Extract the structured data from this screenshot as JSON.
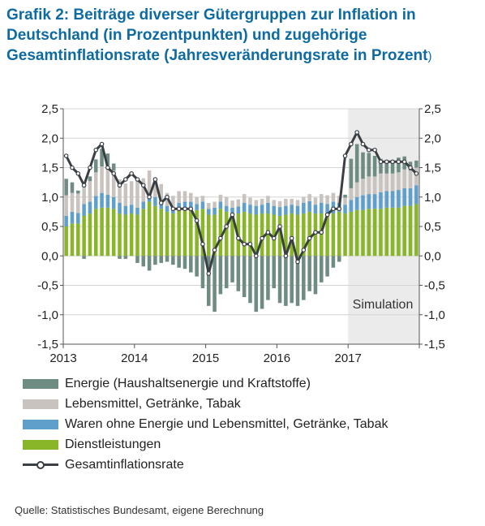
{
  "title_main": "Grafik 2: Beiträge diverser Gütergruppen zur Inflation in Deutschland (in Prozentpunkten) und zugehörige Gesamtinflationsrate (Jahresveränderungsrate in Prozent",
  "title_paren": ")",
  "source": "Quelle: Statistisches Bundesamt, eigene Berechnung",
  "colors": {
    "energie": "#6e8c82",
    "lebensmittel": "#c8c3be",
    "waren": "#5e9fcb",
    "dienst": "#88b628",
    "gesamt": "#3a3f44",
    "simulation_bg": "#ebebeb",
    "grid": "#d4d4d4"
  },
  "chart_data": {
    "type": "bar",
    "stacked": true,
    "title": "",
    "xlabel": "",
    "ylabel": "",
    "ylim": [
      -1.5,
      2.5
    ],
    "yticks": [
      -1.5,
      -1.0,
      -0.5,
      0.0,
      0.5,
      1.0,
      1.5,
      2.0,
      2.5
    ],
    "ytick_labels": [
      "-1,5",
      "-1,0",
      "-0,5",
      "0,0",
      "0,5",
      "1,0",
      "1,5",
      "2,0",
      "2,5"
    ],
    "x_tick_labels": [
      "2013",
      "2014",
      "2015",
      "2016",
      "2017"
    ],
    "grid": "horizontal",
    "secondary_y_axis": true,
    "annotation": "Simulation",
    "simulation_start": "2017-01",
    "categories": [
      "2013-01",
      "2013-02",
      "2013-03",
      "2013-04",
      "2013-05",
      "2013-06",
      "2013-07",
      "2013-08",
      "2013-09",
      "2013-10",
      "2013-11",
      "2013-12",
      "2014-01",
      "2014-02",
      "2014-03",
      "2014-04",
      "2014-05",
      "2014-06",
      "2014-07",
      "2014-08",
      "2014-09",
      "2014-10",
      "2014-11",
      "2014-12",
      "2015-01",
      "2015-02",
      "2015-03",
      "2015-04",
      "2015-05",
      "2015-06",
      "2015-07",
      "2015-08",
      "2015-09",
      "2015-10",
      "2015-11",
      "2015-12",
      "2016-01",
      "2016-02",
      "2016-03",
      "2016-04",
      "2016-05",
      "2016-06",
      "2016-07",
      "2016-08",
      "2016-09",
      "2016-10",
      "2016-11",
      "2016-12",
      "2017-01",
      "2017-02",
      "2017-03",
      "2017-04",
      "2017-05",
      "2017-06",
      "2017-07",
      "2017-08",
      "2017-09",
      "2017-10",
      "2017-11",
      "2017-12"
    ],
    "series": [
      {
        "name": "Energie (Haushaltsenergie und Kraftstoffe)",
        "key": "energie",
        "values": [
          0.28,
          0.18,
          0.05,
          -0.05,
          0.08,
          0.22,
          0.3,
          0.2,
          0.12,
          -0.05,
          -0.05,
          0.0,
          -0.12,
          -0.18,
          -0.25,
          -0.15,
          -0.12,
          -0.1,
          -0.15,
          -0.2,
          -0.22,
          -0.28,
          -0.35,
          -0.55,
          -0.85,
          -0.95,
          -0.65,
          -0.55,
          -0.45,
          -0.6,
          -0.7,
          -0.8,
          -0.95,
          -0.9,
          -0.75,
          -0.55,
          -0.8,
          -0.85,
          -0.8,
          -0.85,
          -0.75,
          -0.6,
          -0.65,
          -0.45,
          -0.35,
          -0.2,
          -0.1,
          0.05,
          0.5,
          0.65,
          0.45,
          0.4,
          0.35,
          0.25,
          0.2,
          0.22,
          0.25,
          0.22,
          0.15,
          0.12
        ]
      },
      {
        "name": "Lebensmittel, Getränke, Tabak",
        "key": "lebensmittel",
        "values": [
          0.35,
          0.32,
          0.33,
          0.35,
          0.35,
          0.4,
          0.45,
          0.5,
          0.45,
          0.4,
          0.38,
          0.4,
          0.45,
          0.4,
          0.38,
          0.3,
          0.3,
          0.22,
          0.2,
          0.2,
          0.18,
          0.15,
          0.12,
          0.1,
          0.1,
          0.1,
          0.12,
          0.15,
          0.12,
          0.12,
          0.15,
          0.12,
          0.1,
          0.1,
          0.12,
          0.1,
          0.1,
          0.12,
          0.1,
          0.1,
          0.1,
          0.12,
          0.12,
          0.15,
          0.15,
          0.15,
          0.12,
          0.12,
          0.2,
          0.25,
          0.28,
          0.3,
          0.3,
          0.32,
          0.3,
          0.3,
          0.3,
          0.32,
          0.3,
          0.3
        ]
      },
      {
        "name": "Waren ohne Energie und Lebensmittel, Getränke, Tabak",
        "key": "waren",
        "values": [
          0.18,
          0.2,
          0.18,
          0.2,
          0.2,
          0.22,
          0.25,
          0.22,
          0.2,
          0.18,
          0.15,
          0.15,
          0.12,
          0.12,
          0.15,
          0.15,
          0.12,
          0.1,
          0.1,
          0.12,
          0.12,
          0.1,
          0.1,
          0.12,
          0.1,
          0.12,
          0.12,
          0.1,
          0.12,
          0.12,
          0.15,
          0.15,
          0.15,
          0.15,
          0.18,
          0.15,
          0.15,
          0.15,
          0.15,
          0.15,
          0.18,
          0.18,
          0.15,
          0.18,
          0.18,
          0.2,
          0.15,
          0.15,
          0.2,
          0.22,
          0.25,
          0.25,
          0.25,
          0.28,
          0.28,
          0.28,
          0.3,
          0.3,
          0.3,
          0.32
        ]
      },
      {
        "name": "Dienstleistungen",
        "key": "dienst",
        "values": [
          0.5,
          0.55,
          0.55,
          0.68,
          0.72,
          0.8,
          0.82,
          0.82,
          0.8,
          0.72,
          0.7,
          0.72,
          0.7,
          0.8,
          0.92,
          0.85,
          0.8,
          0.75,
          0.72,
          0.78,
          0.8,
          0.82,
          0.78,
          0.8,
          0.7,
          0.7,
          0.8,
          0.75,
          0.7,
          0.72,
          0.75,
          0.72,
          0.7,
          0.72,
          0.72,
          0.7,
          0.68,
          0.7,
          0.72,
          0.7,
          0.72,
          0.75,
          0.72,
          0.72,
          0.7,
          0.72,
          0.75,
          0.72,
          0.75,
          0.78,
          0.78,
          0.8,
          0.8,
          0.8,
          0.82,
          0.82,
          0.82,
          0.85,
          0.85,
          0.88
        ]
      }
    ],
    "line": {
      "name": "Gesamtinflationsrate",
      "values": [
        1.7,
        1.5,
        1.4,
        1.2,
        1.5,
        1.8,
        1.9,
        1.5,
        1.4,
        1.2,
        1.3,
        1.4,
        1.3,
        1.2,
        1.0,
        1.3,
        0.9,
        1.0,
        0.8,
        0.8,
        0.8,
        0.8,
        0.6,
        0.2,
        -0.3,
        0.1,
        0.3,
        0.5,
        0.7,
        0.3,
        0.2,
        0.2,
        0.0,
        0.3,
        0.4,
        0.3,
        0.5,
        0.0,
        0.3,
        -0.1,
        0.1,
        0.3,
        0.4,
        0.4,
        0.7,
        0.8,
        0.8,
        1.7,
        1.9,
        2.1,
        1.9,
        1.8,
        1.8,
        1.6,
        1.6,
        1.6,
        1.6,
        1.6,
        1.5,
        1.4
      ]
    }
  }
}
